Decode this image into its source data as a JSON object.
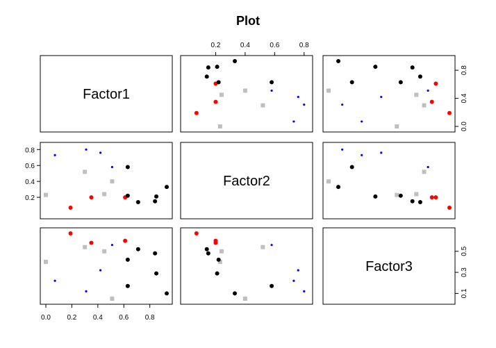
{
  "colors": {
    "background": "#ffffff",
    "ink": "#000000",
    "series_colors": [
      "#bfbfbf",
      "#000000",
      "#ff0000",
      "#0000ff"
    ]
  },
  "chart_data": {
    "type": "scatter",
    "subtype": "pairs scatterplot matrix",
    "title": "Plot",
    "variables": [
      "Factor1",
      "Factor2",
      "Factor3"
    ],
    "ranges": {
      "Factor1": [
        0.0,
        0.93
      ],
      "Factor2": [
        0.0,
        0.82
      ],
      "Factor3": [
        0.05,
        0.67
      ]
    },
    "ticks": {
      "Factor1": {
        "values": [
          0.0,
          0.2,
          0.4,
          0.6,
          0.8
        ],
        "labels": [
          "0.0",
          "0.2",
          "0.4",
          "0.6",
          "0.8"
        ]
      },
      "Factor2": {
        "values": [
          0.2,
          0.4,
          0.6,
          0.8
        ],
        "labels": [
          "0.2",
          "0.4",
          "0.6",
          "0.8"
        ]
      },
      "Factor3": {
        "values": [
          0.1,
          0.3,
          0.5
        ],
        "labels": [
          "0.1",
          "0.3",
          "0.5"
        ]
      },
      "Factor2_right": {
        "values": [
          0.0,
          0.4,
          0.8
        ],
        "labels": [
          "0.0",
          "0.4",
          "0.8"
        ]
      },
      "Factor3_right": {
        "values": [
          0.1,
          0.3,
          0.5
        ],
        "labels": [
          "0.1",
          "0.3",
          "0.5"
        ]
      }
    },
    "grid": false,
    "legend": "none",
    "group_styles": [
      {
        "color": "#bfbfbf",
        "marker": "square"
      },
      {
        "color": "#000000",
        "marker": "circle"
      },
      {
        "color": "#ff0000",
        "marker": "circle"
      },
      {
        "color": "#0000ff",
        "marker": "dot"
      }
    ],
    "points": [
      {
        "Factor1": 0.0,
        "Factor2": 0.23,
        "Factor3": 0.4,
        "group": 0
      },
      {
        "Factor1": 0.3,
        "Factor2": 0.52,
        "Factor3": 0.54,
        "group": 0
      },
      {
        "Factor1": 0.45,
        "Factor2": 0.24,
        "Factor3": 0.5,
        "group": 0
      },
      {
        "Factor1": 0.51,
        "Factor2": 0.4,
        "Factor3": 0.05,
        "group": 0
      },
      {
        "Factor1": 0.07,
        "Factor2": 0.73,
        "Factor3": 0.22,
        "group": 3
      },
      {
        "Factor1": 0.31,
        "Factor2": 0.8,
        "Factor3": 0.12,
        "group": 3
      },
      {
        "Factor1": 0.42,
        "Factor2": 0.76,
        "Factor3": 0.32,
        "group": 3
      },
      {
        "Factor1": 0.51,
        "Factor2": 0.58,
        "Factor3": 0.56,
        "group": 3
      },
      {
        "Factor1": 0.19,
        "Factor2": 0.07,
        "Factor3": 0.67,
        "group": 2
      },
      {
        "Factor1": 0.35,
        "Factor2": 0.2,
        "Factor3": 0.58,
        "group": 2
      },
      {
        "Factor1": 0.61,
        "Factor2": 0.2,
        "Factor3": 0.6,
        "group": 2
      },
      {
        "Factor1": 0.63,
        "Factor2": 0.58,
        "Factor3": 0.17,
        "group": 1
      },
      {
        "Factor1": 0.63,
        "Factor2": 0.22,
        "Factor3": 0.42,
        "group": 1
      },
      {
        "Factor1": 0.71,
        "Factor2": 0.14,
        "Factor3": 0.52,
        "group": 1
      },
      {
        "Factor1": 0.84,
        "Factor2": 0.15,
        "Factor3": 0.48,
        "group": 1
      },
      {
        "Factor1": 0.85,
        "Factor2": 0.21,
        "Factor3": 0.29,
        "group": 1
      },
      {
        "Factor1": 0.93,
        "Factor2": 0.33,
        "Factor3": 0.1,
        "group": 1
      }
    ]
  }
}
